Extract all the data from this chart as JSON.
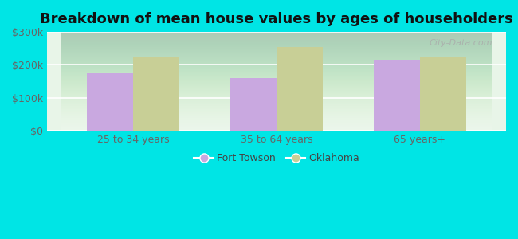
{
  "title": "Breakdown of mean house values by ages of householders",
  "categories": [
    "25 to 34 years",
    "35 to 64 years",
    "65 years+"
  ],
  "fort_towson_values": [
    175000,
    160000,
    215000
  ],
  "oklahoma_values": [
    225000,
    255000,
    222000
  ],
  "bar_color_ft": "#c9a8e0",
  "bar_color_ok": "#c8cf96",
  "ylim": [
    0,
    300000
  ],
  "yticks": [
    0,
    100000,
    200000,
    300000
  ],
  "ytick_labels": [
    "$0",
    "$100k",
    "$200k",
    "$300k"
  ],
  "legend_ft": "Fort Towson",
  "legend_ok": "Oklahoma",
  "bg_outer": "#00e5e5",
  "title_fontsize": 13,
  "tick_fontsize": 9,
  "legend_fontsize": 9,
  "bar_width": 0.32,
  "watermark": "City-Data.com"
}
